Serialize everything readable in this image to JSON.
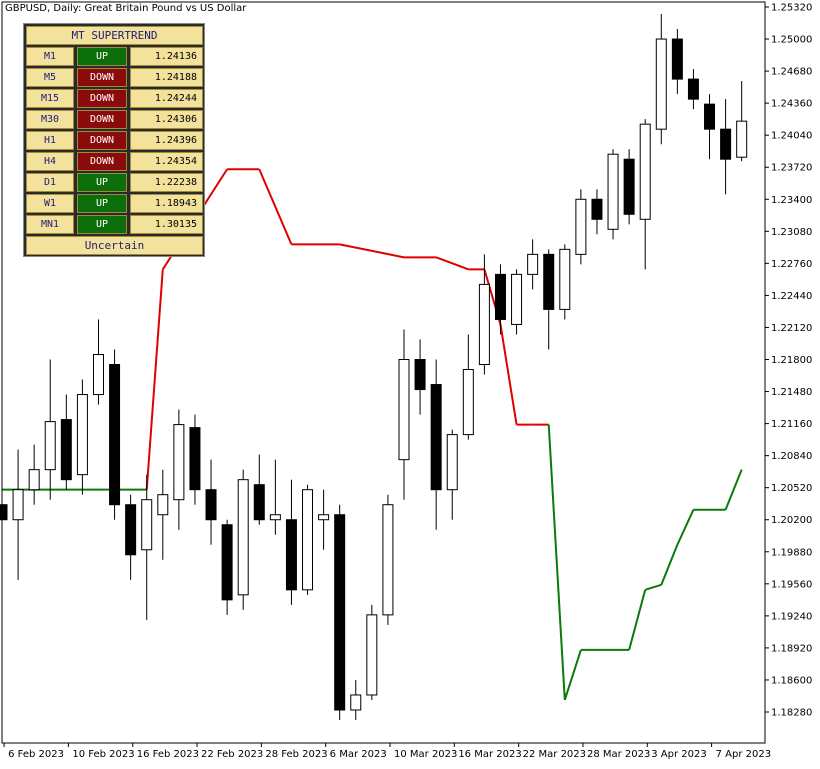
{
  "chart_title": "GBPUSD, Daily:  Great Britain Pound vs US Dollar",
  "panel": {
    "title": "MT SUPERTREND",
    "rows": [
      {
        "tf": "M1",
        "signal": "UP",
        "value": "1.24136"
      },
      {
        "tf": "M5",
        "signal": "DOWN",
        "value": "1.24188"
      },
      {
        "tf": "M15",
        "signal": "DOWN",
        "value": "1.24244"
      },
      {
        "tf": "M30",
        "signal": "DOWN",
        "value": "1.24306"
      },
      {
        "tf": "H1",
        "signal": "DOWN",
        "value": "1.24396"
      },
      {
        "tf": "H4",
        "signal": "DOWN",
        "value": "1.24354"
      },
      {
        "tf": "D1",
        "signal": "UP",
        "value": "1.22238"
      },
      {
        "tf": "W1",
        "signal": "UP",
        "value": "1.18943"
      },
      {
        "tf": "MN1",
        "signal": "UP",
        "value": "1.30135"
      }
    ],
    "footer": "Uncertain"
  },
  "colors": {
    "up_signal": "#0b6e0b",
    "down_signal": "#8b0a0a",
    "supertrend_down": "#e00000",
    "supertrend_up": "#0a7a0a",
    "candle": "#000000"
  },
  "chart_data": {
    "type": "candlestick",
    "symbol": "GBPUSD",
    "timeframe": "Daily",
    "ylim": [
      1.1795,
      1.2545
    ],
    "y_ticks": [
      "1.25320",
      "1.25000",
      "1.24680",
      "1.24360",
      "1.24040",
      "1.23720",
      "1.23400",
      "1.23080",
      "1.22760",
      "1.22440",
      "1.22120",
      "1.21800",
      "1.21480",
      "1.21160",
      "1.20840",
      "1.20520",
      "1.20200",
      "1.19880",
      "1.19560",
      "1.19240",
      "1.18920",
      "1.18600",
      "1.18280"
    ],
    "x_ticks": [
      "6 Feb 2023",
      "10 Feb 2023",
      "16 Feb 2023",
      "22 Feb 2023",
      "28 Feb 2023",
      "6 Mar 2023",
      "10 Mar 2023",
      "16 Mar 2023",
      "22 Mar 2023",
      "28 Mar 2023",
      "3 Apr 2023",
      "7 Apr 2023"
    ],
    "candles": [
      {
        "date": "2023-02-03",
        "o": 1.2035,
        "h": 1.206,
        "l": 1.2,
        "c": 1.202
      },
      {
        "date": "2023-02-06",
        "o": 1.202,
        "h": 1.209,
        "l": 1.196,
        "c": 1.205
      },
      {
        "date": "2023-02-07",
        "o": 1.205,
        "h": 1.2095,
        "l": 1.2035,
        "c": 1.207
      },
      {
        "date": "2023-02-08",
        "o": 1.207,
        "h": 1.218,
        "l": 1.204,
        "c": 1.2118
      },
      {
        "date": "2023-02-09",
        "o": 1.212,
        "h": 1.2145,
        "l": 1.205,
        "c": 1.206
      },
      {
        "date": "2023-02-10",
        "o": 1.2065,
        "h": 1.216,
        "l": 1.2045,
        "c": 1.2145
      },
      {
        "date": "2023-02-13",
        "o": 1.2145,
        "h": 1.222,
        "l": 1.2135,
        "c": 1.2185
      },
      {
        "date": "2023-02-14",
        "o": 1.2175,
        "h": 1.219,
        "l": 1.202,
        "c": 1.2035
      },
      {
        "date": "2023-02-15",
        "o": 1.2035,
        "h": 1.2045,
        "l": 1.196,
        "c": 1.1985
      },
      {
        "date": "2023-02-16",
        "o": 1.199,
        "h": 1.2065,
        "l": 1.192,
        "c": 1.204
      },
      {
        "date": "2023-02-17",
        "o": 1.2025,
        "h": 1.207,
        "l": 1.198,
        "c": 1.2045
      },
      {
        "date": "2023-02-20",
        "o": 1.204,
        "h": 1.213,
        "l": 1.201,
        "c": 1.2115
      },
      {
        "date": "2023-02-21",
        "o": 1.2112,
        "h": 1.2125,
        "l": 1.2035,
        "c": 1.205
      },
      {
        "date": "2023-02-22",
        "o": 1.205,
        "h": 1.208,
        "l": 1.1995,
        "c": 1.202
      },
      {
        "date": "2023-02-23",
        "o": 1.2015,
        "h": 1.202,
        "l": 1.1925,
        "c": 1.194
      },
      {
        "date": "2023-02-24",
        "o": 1.1945,
        "h": 1.207,
        "l": 1.193,
        "c": 1.206
      },
      {
        "date": "2023-02-27",
        "o": 1.2055,
        "h": 1.2085,
        "l": 1.2015,
        "c": 1.202
      },
      {
        "date": "2023-02-28",
        "o": 1.202,
        "h": 1.208,
        "l": 1.2005,
        "c": 1.2025
      },
      {
        "date": "2023-03-01",
        "o": 1.202,
        "h": 1.206,
        "l": 1.1935,
        "c": 1.195
      },
      {
        "date": "2023-03-02",
        "o": 1.195,
        "h": 1.2055,
        "l": 1.1945,
        "c": 1.205
      },
      {
        "date": "2023-03-03",
        "o": 1.202,
        "h": 1.205,
        "l": 1.199,
        "c": 1.2025
      },
      {
        "date": "2023-03-06",
        "o": 1.2025,
        "h": 1.2035,
        "l": 1.182,
        "c": 1.183
      },
      {
        "date": "2023-03-07",
        "o": 1.183,
        "h": 1.186,
        "l": 1.182,
        "c": 1.1845
      },
      {
        "date": "2023-03-08",
        "o": 1.1845,
        "h": 1.1935,
        "l": 1.184,
        "c": 1.1925
      },
      {
        "date": "2023-03-09",
        "o": 1.1925,
        "h": 1.2045,
        "l": 1.1915,
        "c": 1.2035
      },
      {
        "date": "2023-03-10",
        "o": 1.208,
        "h": 1.221,
        "l": 1.204,
        "c": 1.218
      },
      {
        "date": "2023-03-13",
        "o": 1.218,
        "h": 1.22,
        "l": 1.2125,
        "c": 1.215
      },
      {
        "date": "2023-03-14",
        "o": 1.2155,
        "h": 1.218,
        "l": 1.201,
        "c": 1.205
      },
      {
        "date": "2023-03-15",
        "o": 1.205,
        "h": 1.211,
        "l": 1.202,
        "c": 1.2105
      },
      {
        "date": "2023-03-16",
        "o": 1.2105,
        "h": 1.2205,
        "l": 1.21,
        "c": 1.217
      },
      {
        "date": "2023-03-17",
        "o": 1.2175,
        "h": 1.2285,
        "l": 1.2165,
        "c": 1.2255
      },
      {
        "date": "2023-03-20",
        "o": 1.2265,
        "h": 1.2275,
        "l": 1.2205,
        "c": 1.222
      },
      {
        "date": "2023-03-21",
        "o": 1.2215,
        "h": 1.227,
        "l": 1.2205,
        "c": 1.2265
      },
      {
        "date": "2023-03-22",
        "o": 1.2265,
        "h": 1.23,
        "l": 1.225,
        "c": 1.2285
      },
      {
        "date": "2023-03-23",
        "o": 1.2285,
        "h": 1.229,
        "l": 1.219,
        "c": 1.223
      },
      {
        "date": "2023-03-24",
        "o": 1.223,
        "h": 1.2295,
        "l": 1.222,
        "c": 1.229
      },
      {
        "date": "2023-03-27",
        "o": 1.2285,
        "h": 1.235,
        "l": 1.2275,
        "c": 1.234
      },
      {
        "date": "2023-03-28",
        "o": 1.234,
        "h": 1.235,
        "l": 1.2305,
        "c": 1.232
      },
      {
        "date": "2023-03-29",
        "o": 1.231,
        "h": 1.239,
        "l": 1.23,
        "c": 1.2385
      },
      {
        "date": "2023-03-30",
        "o": 1.238,
        "h": 1.239,
        "l": 1.2315,
        "c": 1.2325
      },
      {
        "date": "2023-03-31",
        "o": 1.232,
        "h": 1.242,
        "l": 1.227,
        "c": 1.2415
      },
      {
        "date": "2023-04-03",
        "o": 1.241,
        "h": 1.2525,
        "l": 1.2395,
        "c": 1.25
      },
      {
        "date": "2023-04-04",
        "o": 1.25,
        "h": 1.251,
        "l": 1.2445,
        "c": 1.246
      },
      {
        "date": "2023-04-05",
        "o": 1.246,
        "h": 1.247,
        "l": 1.243,
        "c": 1.244
      },
      {
        "date": "2023-04-06",
        "o": 1.2435,
        "h": 1.2445,
        "l": 1.238,
        "c": 1.241
      },
      {
        "date": "2023-04-07",
        "o": 1.241,
        "h": 1.244,
        "l": 1.2345,
        "c": 1.238
      },
      {
        "date": "2023-04-10",
        "o": 1.2382,
        "h": 1.2458,
        "l": 1.2378,
        "c": 1.2418
      }
    ],
    "supertrend": [
      {
        "date": "2023-02-03",
        "value": 1.205,
        "trend": "up"
      },
      {
        "date": "2023-02-07",
        "value": 1.205,
        "trend": "up"
      },
      {
        "date": "2023-02-16",
        "value": 1.205,
        "trend": "up"
      },
      {
        "date": "2023-02-17",
        "value": 1.227,
        "trend": "down"
      },
      {
        "date": "2023-02-23",
        "value": 1.237,
        "trend": "down"
      },
      {
        "date": "2023-02-27",
        "value": 1.237,
        "trend": "down"
      },
      {
        "date": "2023-03-01",
        "value": 1.2295,
        "trend": "down"
      },
      {
        "date": "2023-03-06",
        "value": 1.2295,
        "trend": "down"
      },
      {
        "date": "2023-03-10",
        "value": 1.2282,
        "trend": "down"
      },
      {
        "date": "2023-03-14",
        "value": 1.2282,
        "trend": "down"
      },
      {
        "date": "2023-03-16",
        "value": 1.227,
        "trend": "down"
      },
      {
        "date": "2023-03-17",
        "value": 1.227,
        "trend": "down"
      },
      {
        "date": "2023-03-20",
        "value": 1.2215,
        "trend": "down"
      },
      {
        "date": "2023-03-21",
        "value": 1.2115,
        "trend": "down"
      },
      {
        "date": "2023-03-22",
        "value": 1.2115,
        "trend": "down"
      },
      {
        "date": "2023-03-23",
        "value": 1.2115,
        "trend": "down"
      },
      {
        "date": "2023-03-24",
        "value": 1.184,
        "trend": "up"
      },
      {
        "date": "2023-03-27",
        "value": 1.189,
        "trend": "up"
      },
      {
        "date": "2023-03-30",
        "value": 1.189,
        "trend": "up"
      },
      {
        "date": "2023-03-31",
        "value": 1.195,
        "trend": "up"
      },
      {
        "date": "2023-04-03",
        "value": 1.1955,
        "trend": "up"
      },
      {
        "date": "2023-04-04",
        "value": 1.1995,
        "trend": "up"
      },
      {
        "date": "2023-04-05",
        "value": 1.203,
        "trend": "up"
      },
      {
        "date": "2023-04-07",
        "value": 1.203,
        "trend": "up"
      },
      {
        "date": "2023-04-10",
        "value": 1.207,
        "trend": "up"
      }
    ]
  }
}
